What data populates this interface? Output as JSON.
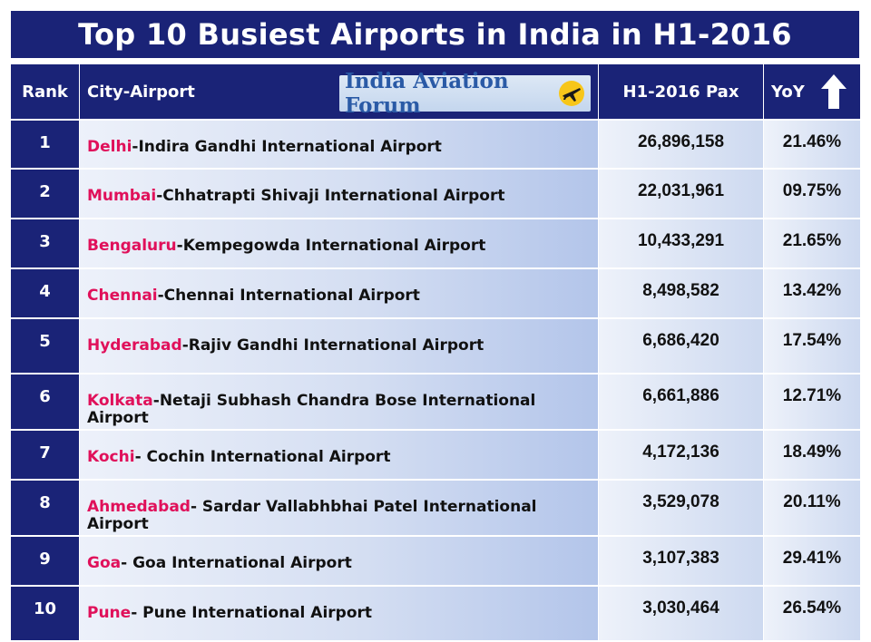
{
  "chart_data": {
    "type": "table",
    "title": "Top 10 Busiest Airports in India in H1-2016",
    "columns": [
      "Rank",
      "City-Airport",
      "H1-2016 Pax",
      "YoY"
    ],
    "logo_text": "India Aviation Forum",
    "colors": {
      "header_bg": "#1a2377",
      "city_text": "#e0105a",
      "cell_gradient_light": "#edf1fa",
      "cell_gradient_dark": "#b3c5ea"
    },
    "rows": [
      {
        "rank": "1",
        "city": "Delhi",
        "airport": "-Indira Gandhi International Airport",
        "pax": "26,896,158",
        "yoy": "21.46%"
      },
      {
        "rank": "2",
        "city": "Mumbai",
        "airport": "-Chhatrapti Shivaji International Airport",
        "pax": "22,031,961",
        "yoy": "09.75%"
      },
      {
        "rank": "3",
        "city": "Bengaluru",
        "airport": "-Kempegowda International Airport",
        "pax": "10,433,291",
        "yoy": "21.65%"
      },
      {
        "rank": "4",
        "city": "Chennai",
        "airport": "-Chennai International Airport",
        "pax": "8,498,582",
        "yoy": "13.42%"
      },
      {
        "rank": "5",
        "city": "Hyderabad",
        "airport": "-Rajiv Gandhi International Airport",
        "pax": "6,686,420",
        "yoy": "17.54%"
      },
      {
        "rank": "6",
        "city": "Kolkata",
        "airport": "-Netaji Subhash Chandra Bose International Airport",
        "pax": "6,661,886",
        "yoy": "12.71%"
      },
      {
        "rank": "7",
        "city": "Kochi",
        "airport": "- Cochin International Airport",
        "pax": "4,172,136",
        "yoy": "18.49%"
      },
      {
        "rank": "8",
        "city": "Ahmedabad",
        "airport": "- Sardar Vallabhbhai Patel International Airport",
        "pax": "3,529,078",
        "yoy": "20.11%"
      },
      {
        "rank": "9",
        "city": "Goa",
        "airport": "- Goa International Airport",
        "pax": "3,107,383",
        "yoy": "29.41%"
      },
      {
        "rank": "10",
        "city": "Pune",
        "airport": "- Pune International Airport",
        "pax": "3,030,464",
        "yoy": "26.54%"
      }
    ]
  }
}
